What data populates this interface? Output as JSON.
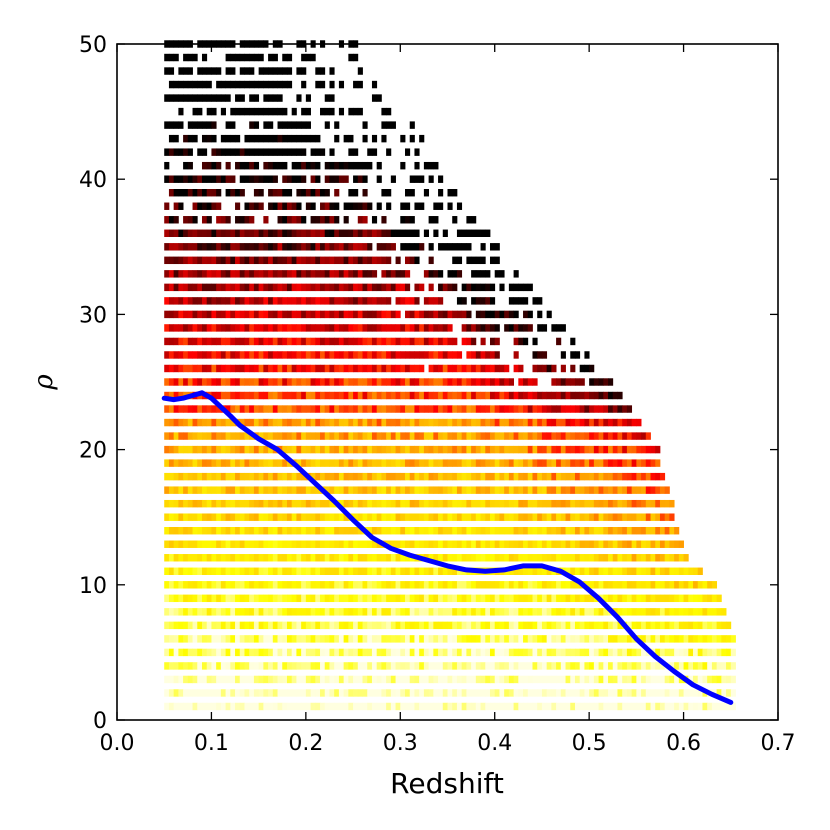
{
  "chart_data": {
    "type": "heatmap",
    "xlabel": "Redshift",
    "ylabel": "ρ",
    "xlim": [
      0.0,
      0.7
    ],
    "ylim": [
      0,
      50
    ],
    "xticks": [
      "0.0",
      "0.1",
      "0.2",
      "0.3",
      "0.4",
      "0.5",
      "0.6",
      "0.7"
    ],
    "yticks": [
      "0",
      "10",
      "20",
      "30",
      "40",
      "50"
    ],
    "colormap": [
      "#000000",
      "#8b0000",
      "#ff0000",
      "#ff8c00",
      "#ffd700",
      "#ffff00",
      "#ffffe0"
    ],
    "heatmap": {
      "rho_start": 1.0,
      "rho_step": 1.0,
      "rho_count": 50,
      "band_height_rho": 0.55,
      "z_start": 0.05,
      "z_step": 0.005,
      "upper_edge": {
        "z": [
          0.65,
          0.65,
          0.63,
          0.6,
          0.57,
          0.52,
          0.47,
          0.4,
          0.35,
          0.3,
          0.27,
          0.26
        ],
        "rho": [
          1,
          6,
          10,
          12,
          20,
          25,
          29,
          35,
          40,
          45,
          48,
          50
        ]
      }
    },
    "series": [
      {
        "name": "",
        "color": "#0000ff",
        "x": [
          0.05,
          0.06,
          0.07,
          0.08,
          0.09,
          0.1,
          0.12,
          0.13,
          0.15,
          0.17,
          0.19,
          0.21,
          0.23,
          0.25,
          0.27,
          0.29,
          0.31,
          0.33,
          0.35,
          0.37,
          0.39,
          0.41,
          0.43,
          0.45,
          0.47,
          0.49,
          0.51,
          0.53,
          0.55,
          0.57,
          0.59,
          0.61,
          0.63,
          0.65
        ],
        "y": [
          23.8,
          23.7,
          23.8,
          24.0,
          24.2,
          23.8,
          22.5,
          21.8,
          20.8,
          20.0,
          18.8,
          17.5,
          16.2,
          14.8,
          13.5,
          12.7,
          12.2,
          11.8,
          11.4,
          11.1,
          11.0,
          11.1,
          11.4,
          11.4,
          11.0,
          10.2,
          9.0,
          7.6,
          6.0,
          4.7,
          3.6,
          2.6,
          1.9,
          1.3
        ]
      }
    ]
  }
}
